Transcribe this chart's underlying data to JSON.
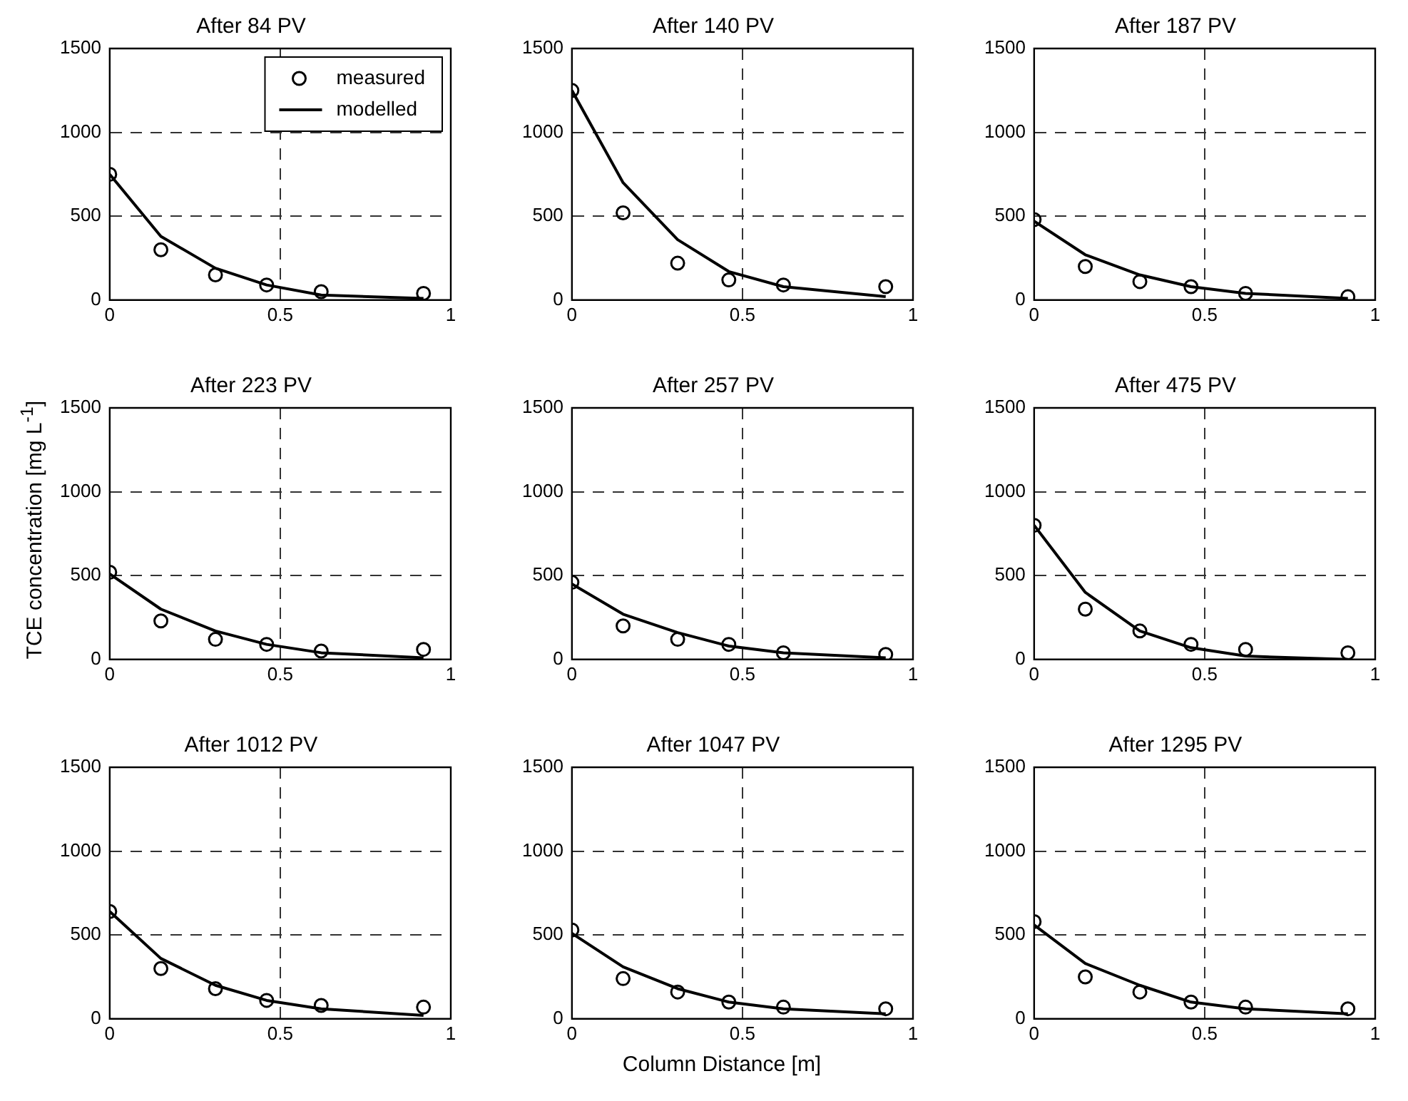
{
  "chart_data": [
    {
      "type": "scatter",
      "title": "After 84 PV",
      "xlim": [
        0,
        1
      ],
      "xticks": [
        0,
        0.5,
        1
      ],
      "ylim": [
        0,
        1500
      ],
      "yticks": [
        0,
        500,
        1000,
        1500
      ],
      "grid": true,
      "legend": "top right",
      "series": [
        {
          "name": "measured",
          "type": "scatter",
          "marker": "circle",
          "color": "#000000",
          "x": [
            0,
            0.15,
            0.31,
            0.46,
            0.62,
            0.92
          ],
          "values": [
            750,
            300,
            150,
            90,
            50,
            40
          ]
        },
        {
          "name": "modelled",
          "type": "line",
          "marker": "none",
          "color": "#000000",
          "x": [
            0,
            0.15,
            0.31,
            0.46,
            0.62,
            0.92
          ],
          "values": [
            750,
            380,
            190,
            90,
            30,
            10
          ]
        }
      ]
    },
    {
      "type": "scatter",
      "title": "After 140 PV",
      "xlim": [
        0,
        1
      ],
      "xticks": [
        0,
        0.5,
        1
      ],
      "ylim": [
        0,
        1500
      ],
      "yticks": [
        0,
        500,
        1000,
        1500
      ],
      "grid": true,
      "series": [
        {
          "type": "scatter",
          "marker": "circle",
          "color": "#000000",
          "x": [
            0,
            0.15,
            0.31,
            0.46,
            0.62,
            0.92
          ],
          "values": [
            1250,
            520,
            220,
            120,
            90,
            80
          ]
        },
        {
          "type": "line",
          "marker": "none",
          "color": "#000000",
          "x": [
            0,
            0.15,
            0.31,
            0.46,
            0.62,
            0.92
          ],
          "values": [
            1250,
            700,
            360,
            170,
            80,
            20
          ]
        }
      ]
    },
    {
      "type": "scatter",
      "title": "After 187 PV",
      "xlim": [
        0,
        1
      ],
      "xticks": [
        0,
        0.5,
        1
      ],
      "ylim": [
        0,
        1500
      ],
      "yticks": [
        0,
        500,
        1000,
        1500
      ],
      "grid": true,
      "series": [
        {
          "type": "scatter",
          "marker": "circle",
          "color": "#000000",
          "x": [
            0,
            0.15,
            0.31,
            0.46,
            0.62,
            0.92
          ],
          "values": [
            480,
            200,
            110,
            80,
            40,
            20
          ]
        },
        {
          "type": "line",
          "marker": "none",
          "color": "#000000",
          "x": [
            0,
            0.15,
            0.31,
            0.46,
            0.62,
            0.92
          ],
          "values": [
            470,
            270,
            150,
            80,
            40,
            10
          ]
        }
      ]
    },
    {
      "type": "scatter",
      "title": "After 223 PV",
      "ylabel": "TCE concentration [mg L$^{-1}$]",
      "xlim": [
        0,
        1
      ],
      "xticks": [
        0,
        0.5,
        1
      ],
      "ylim": [
        0,
        1500
      ],
      "yticks": [
        0,
        500,
        1000,
        1500
      ],
      "grid": true,
      "series": [
        {
          "type": "scatter",
          "marker": "circle",
          "color": "#000000",
          "x": [
            0,
            0.15,
            0.31,
            0.46,
            0.62,
            0.92
          ],
          "values": [
            520,
            230,
            120,
            90,
            50,
            60
          ]
        },
        {
          "type": "line",
          "marker": "none",
          "color": "#000000",
          "x": [
            0,
            0.15,
            0.31,
            0.46,
            0.62,
            0.92
          ],
          "values": [
            510,
            300,
            170,
            90,
            40,
            10
          ]
        }
      ]
    },
    {
      "type": "scatter",
      "title": "After 257 PV",
      "xlim": [
        0,
        1
      ],
      "xticks": [
        0,
        0.5,
        1
      ],
      "ylim": [
        0,
        1500
      ],
      "yticks": [
        0,
        500,
        1000,
        1500
      ],
      "grid": true,
      "series": [
        {
          "type": "scatter",
          "marker": "circle",
          "color": "#000000",
          "x": [
            0,
            0.15,
            0.31,
            0.46,
            0.62,
            0.92
          ],
          "values": [
            460,
            200,
            120,
            90,
            40,
            30
          ]
        },
        {
          "type": "line",
          "marker": "none",
          "color": "#000000",
          "x": [
            0,
            0.15,
            0.31,
            0.46,
            0.62,
            0.92
          ],
          "values": [
            450,
            270,
            160,
            80,
            40,
            10
          ]
        }
      ]
    },
    {
      "type": "scatter",
      "title": "After 475 PV",
      "xlim": [
        0,
        1
      ],
      "xticks": [
        0,
        0.5,
        1
      ],
      "ylim": [
        0,
        1500
      ],
      "yticks": [
        0,
        500,
        1000,
        1500
      ],
      "grid": true,
      "series": [
        {
          "type": "scatter",
          "marker": "circle",
          "color": "#000000",
          "x": [
            0,
            0.15,
            0.31,
            0.46,
            0.62,
            0.92
          ],
          "values": [
            800,
            300,
            170,
            90,
            60,
            40
          ]
        },
        {
          "type": "line",
          "marker": "none",
          "color": "#000000",
          "x": [
            0,
            0.15,
            0.31,
            0.46,
            0.62,
            0.92
          ],
          "values": [
            800,
            400,
            170,
            70,
            20,
            0
          ]
        }
      ]
    },
    {
      "type": "scatter",
      "title": "After 1012 PV",
      "xlim": [
        0,
        1
      ],
      "xticks": [
        0,
        0.5,
        1
      ],
      "ylim": [
        0,
        1500
      ],
      "yticks": [
        0,
        500,
        1000,
        1500
      ],
      "grid": true,
      "series": [
        {
          "type": "scatter",
          "marker": "circle",
          "color": "#000000",
          "x": [
            0,
            0.15,
            0.31,
            0.46,
            0.62,
            0.92
          ],
          "values": [
            640,
            300,
            180,
            110,
            80,
            70
          ]
        },
        {
          "type": "line",
          "marker": "none",
          "color": "#000000",
          "x": [
            0,
            0.15,
            0.31,
            0.46,
            0.62,
            0.92
          ],
          "values": [
            640,
            360,
            200,
            110,
            60,
            20
          ]
        }
      ]
    },
    {
      "type": "scatter",
      "title": "After 1047 PV",
      "xlabel": "Column Distance [m]",
      "xlim": [
        0,
        1
      ],
      "xticks": [
        0,
        0.5,
        1
      ],
      "ylim": [
        0,
        1500
      ],
      "yticks": [
        0,
        500,
        1000,
        1500
      ],
      "grid": true,
      "series": [
        {
          "type": "scatter",
          "marker": "circle",
          "color": "#000000",
          "x": [
            0,
            0.15,
            0.31,
            0.46,
            0.62,
            0.92
          ],
          "values": [
            530,
            240,
            160,
            100,
            70,
            60
          ]
        },
        {
          "type": "line",
          "marker": "none",
          "color": "#000000",
          "x": [
            0,
            0.15,
            0.31,
            0.46,
            0.62,
            0.92
          ],
          "values": [
            510,
            310,
            180,
            100,
            60,
            30
          ]
        }
      ]
    },
    {
      "type": "scatter",
      "title": "After 1295 PV",
      "xlim": [
        0,
        1
      ],
      "xticks": [
        0,
        0.5,
        1
      ],
      "ylim": [
        0,
        1500
      ],
      "yticks": [
        0,
        500,
        1000,
        1500
      ],
      "grid": true,
      "series": [
        {
          "type": "scatter",
          "marker": "circle",
          "color": "#000000",
          "x": [
            0,
            0.15,
            0.31,
            0.46,
            0.62,
            0.92
          ],
          "values": [
            580,
            250,
            160,
            100,
            70,
            60
          ]
        },
        {
          "type": "line",
          "marker": "none",
          "color": "#000000",
          "x": [
            0,
            0.15,
            0.31,
            0.46,
            0.62,
            0.92
          ],
          "values": [
            560,
            330,
            200,
            100,
            60,
            30
          ]
        }
      ]
    }
  ]
}
